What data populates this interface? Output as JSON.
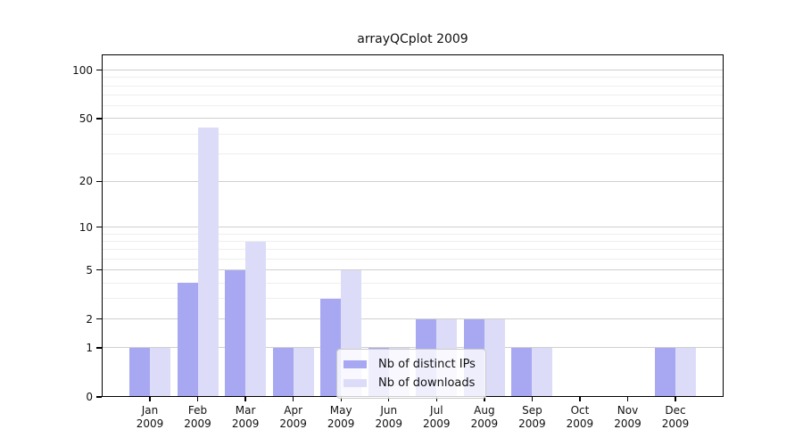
{
  "figure": {
    "title": "arrayQCplot 2009"
  },
  "chart_data": {
    "type": "bar",
    "title": "arrayQCplot 2009",
    "xlabel": "",
    "ylabel": "",
    "year_label": "2009",
    "categories": [
      "Jan",
      "Feb",
      "Mar",
      "Apr",
      "May",
      "Jun",
      "Jul",
      "Aug",
      "Sep",
      "Oct",
      "Nov",
      "Dec"
    ],
    "series": [
      {
        "name": "Nb of distinct IPs",
        "color": "#a8a8f2",
        "values": [
          1,
          4,
          5,
          1,
          3,
          1,
          2,
          2,
          1,
          0,
          0,
          1
        ]
      },
      {
        "name": "Nb of downloads",
        "color": "#dcdcf8",
        "values": [
          1,
          44,
          8,
          1,
          5,
          1,
          2,
          2,
          1,
          0,
          0,
          1
        ]
      }
    ],
    "yscale": "log1p",
    "ylim": [
      0,
      125
    ],
    "yticks": [
      0,
      1,
      2,
      5,
      10,
      20,
      50,
      100
    ],
    "minor_yticks": [
      3,
      4,
      6,
      7,
      8,
      9,
      30,
      40,
      60,
      70,
      80,
      90
    ],
    "grid": "horizontal",
    "legend_position": "lower center",
    "colors": {
      "grid_major": "#cfcfcf",
      "grid_minor": "#eeeeee",
      "frame": "#000000",
      "background": "#ffffff"
    }
  }
}
